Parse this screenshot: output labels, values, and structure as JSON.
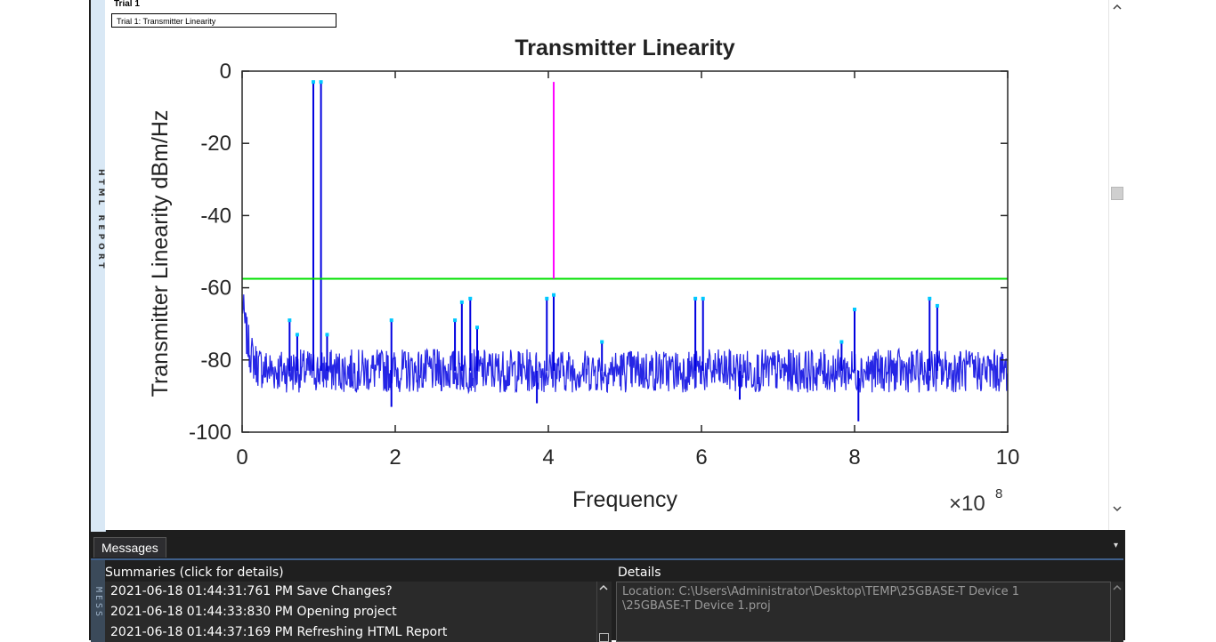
{
  "report": {
    "side_label": "HTML REPORT",
    "trial_heading": "Trial 1",
    "trial_link": "Trial 1: Transmitter Linearity"
  },
  "scrollbar": {
    "up": "^",
    "down": "v"
  },
  "chart_data": {
    "type": "line",
    "title": "Transmitter Linearity",
    "xlabel": "Frequency",
    "ylabel": "Transmitter Linearity dBm/Hz",
    "x_multiplier_label": "×10",
    "x_multiplier_exp": "8",
    "xlim": [
      0,
      10
    ],
    "ylim": [
      -100,
      0
    ],
    "xticks": [
      "0",
      "2",
      "4",
      "6",
      "8",
      "10"
    ],
    "yticks": [
      "0",
      "-20",
      "-40",
      "-60",
      "-80",
      "-100"
    ],
    "limit_line": {
      "y": -57.5,
      "color": "#00e000"
    },
    "marker_line": {
      "x": 4.07,
      "y_top": -3,
      "color": "#ff00ff"
    },
    "noise_floor": -83,
    "series_color": "#0000e0",
    "peaks": [
      {
        "x": 0.93,
        "y": -3
      },
      {
        "x": 1.03,
        "y": -3
      },
      {
        "x": 0.62,
        "y": -69
      },
      {
        "x": 0.72,
        "y": -73
      },
      {
        "x": 1.11,
        "y": -73
      },
      {
        "x": 1.95,
        "y": -69
      },
      {
        "x": 2.78,
        "y": -69
      },
      {
        "x": 2.87,
        "y": -64
      },
      {
        "x": 2.98,
        "y": -63
      },
      {
        "x": 3.07,
        "y": -71
      },
      {
        "x": 3.98,
        "y": -63
      },
      {
        "x": 4.07,
        "y": -62
      },
      {
        "x": 4.7,
        "y": -75
      },
      {
        "x": 5.92,
        "y": -63
      },
      {
        "x": 6.02,
        "y": -63
      },
      {
        "x": 7.83,
        "y": -75
      },
      {
        "x": 8.0,
        "y": -66
      },
      {
        "x": 8.98,
        "y": -63
      },
      {
        "x": 9.08,
        "y": -65
      }
    ],
    "dips": [
      {
        "x": 1.95,
        "y": -93
      },
      {
        "x": 8.05,
        "y": -97
      },
      {
        "x": 3.85,
        "y": -92
      },
      {
        "x": 6.5,
        "y": -91
      }
    ]
  },
  "messages": {
    "tab_label": "Messages",
    "menu_glyph": "▾",
    "side_label": "MESS",
    "summaries_header": "Summaries (click for details)",
    "details_header": "Details",
    "rows": [
      "2021-06-18 01:44:31:761 PM Save Changes?",
      "2021-06-18 01:44:33:830 PM Opening project",
      "2021-06-18 01:44:37:169 PM Refreshing HTML Report"
    ],
    "details_line1": "Location: C:\\Users\\Administrator\\Desktop\\TEMP\\25GBASE-T Device 1",
    "details_line2": "\\25GBASE-T Device 1.proj",
    "up_arrow": "^"
  }
}
